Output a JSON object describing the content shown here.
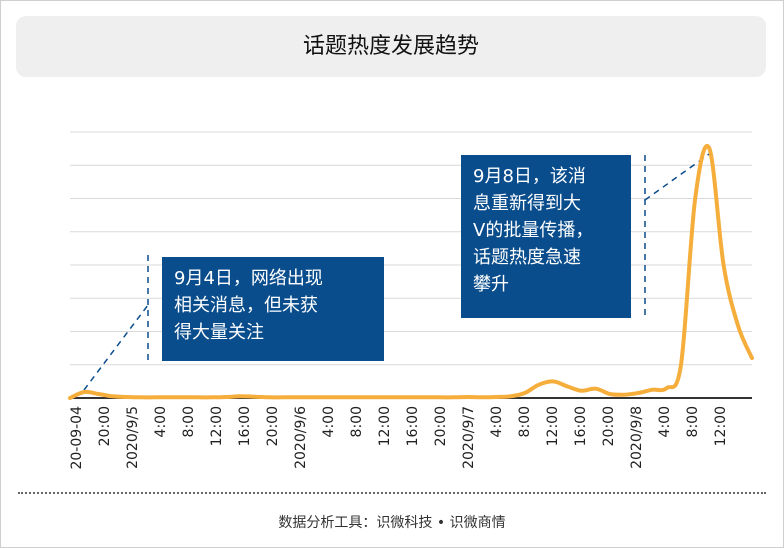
{
  "title": "话题热度发展趋势",
  "footer": "数据分析工具：识微科技 • 识微商情",
  "annotations": [
    {
      "lines": [
        "9月4日，网络出现",
        "相关消息，但未获",
        "得大量关注"
      ]
    },
    {
      "lines": [
        "9月8日，该消",
        "息重新得到大",
        "V的批量传播，",
        "话题热度急速",
        "攀升"
      ]
    }
  ],
  "colors": {
    "line": "#f5ae3c",
    "callout": "#0a4d8c",
    "grid": "#d9d9d9",
    "axis": "#333333"
  },
  "chart_data": {
    "type": "line",
    "title": "话题热度发展趋势",
    "xlabel": "",
    "ylabel": "",
    "grid": true,
    "legend": "none",
    "tick_labels": [
      "20-09-04",
      "20:00",
      "2020/9/5",
      "4:00",
      "8:00",
      "12:00",
      "16:00",
      "20:00",
      "2020/9/6",
      "4:00",
      "8:00",
      "12:00",
      "16:00",
      "20:00",
      "2020/9/7",
      "4:00",
      "8:00",
      "12:00",
      "16:00",
      "20:00",
      "2020/9/8",
      "4:00",
      "8:00",
      "12:00"
    ],
    "ylim": [
      0,
      8
    ],
    "series": [
      {
        "points": [
          [
            0,
            0.0
          ],
          [
            1,
            0.18
          ],
          [
            2,
            0.12
          ],
          [
            3,
            0.05
          ],
          [
            4,
            0.03
          ],
          [
            5,
            0.02
          ],
          [
            6,
            0.02
          ],
          [
            7,
            0.02
          ],
          [
            8,
            0.02
          ],
          [
            9,
            0.02
          ],
          [
            10,
            0.02
          ],
          [
            11,
            0.03
          ],
          [
            12,
            0.05
          ],
          [
            13,
            0.04
          ],
          [
            14,
            0.02
          ],
          [
            15,
            0.02
          ],
          [
            16,
            0.02
          ],
          [
            17,
            0.02
          ],
          [
            18,
            0.02
          ],
          [
            19,
            0.02
          ],
          [
            20,
            0.02
          ],
          [
            21,
            0.02
          ],
          [
            22,
            0.02
          ],
          [
            23,
            0.02
          ],
          [
            24,
            0.02
          ],
          [
            25,
            0.02
          ],
          [
            26,
            0.02
          ],
          [
            27,
            0.02
          ],
          [
            28,
            0.03
          ],
          [
            29,
            0.02
          ],
          [
            30,
            0.03
          ],
          [
            31,
            0.05
          ],
          [
            32,
            0.15
          ],
          [
            33,
            0.4
          ],
          [
            34,
            0.5
          ],
          [
            35,
            0.35
          ],
          [
            36,
            0.22
          ],
          [
            37,
            0.28
          ],
          [
            38,
            0.12
          ],
          [
            39,
            0.1
          ],
          [
            40,
            0.15
          ],
          [
            41,
            0.25
          ],
          [
            42,
            0.3
          ],
          [
            43,
            1.0
          ],
          [
            44,
            6.0
          ],
          [
            45,
            7.5
          ],
          [
            46,
            4.0
          ],
          [
            47,
            2.2
          ],
          [
            48,
            1.2
          ]
        ]
      }
    ]
  }
}
